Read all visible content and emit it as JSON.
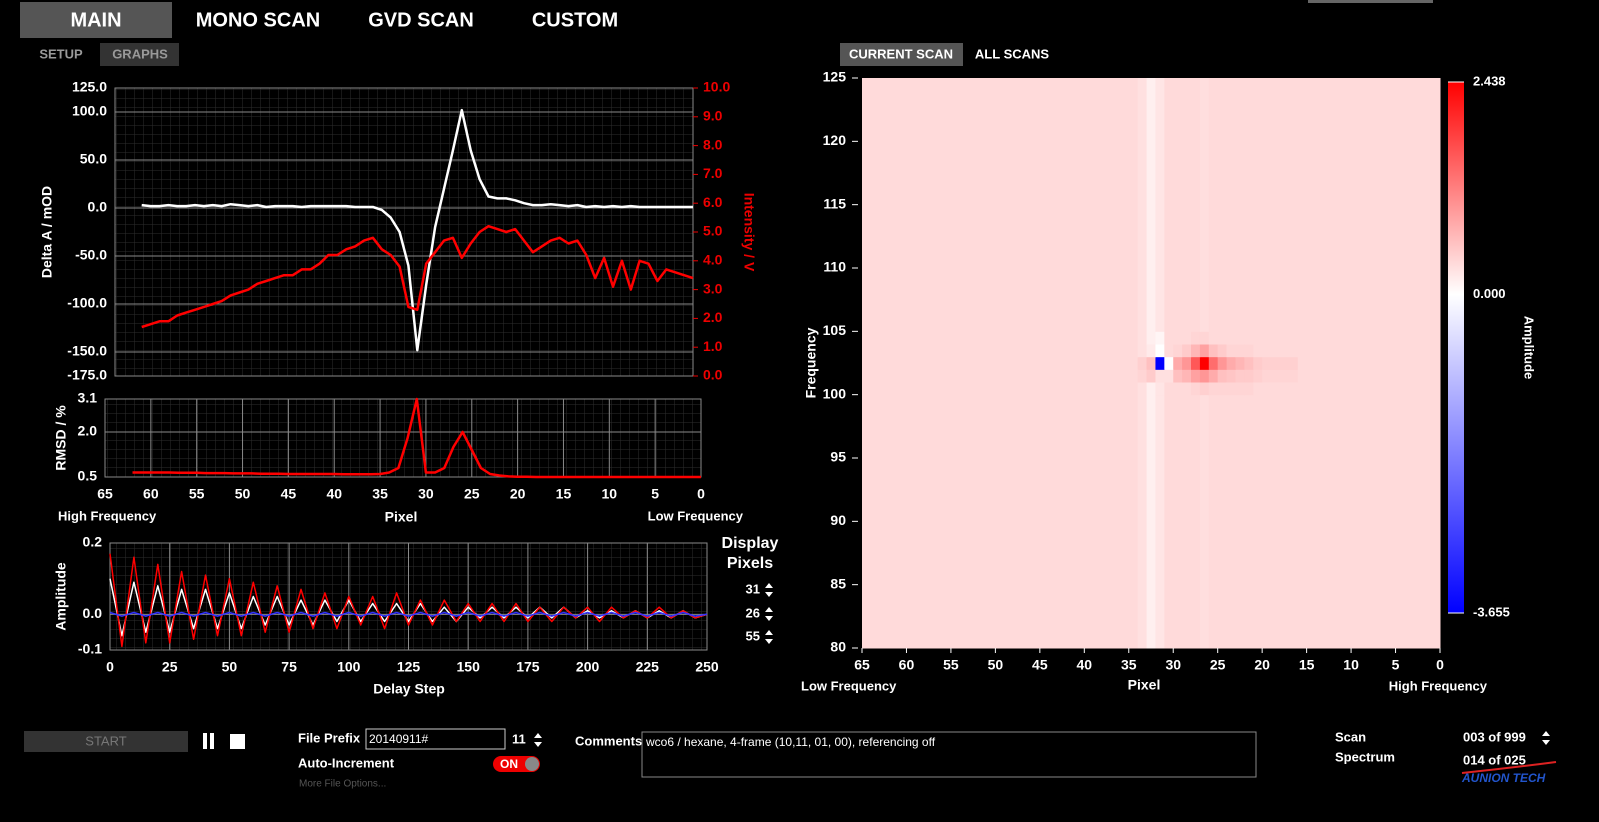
{
  "ui": {
    "tabs": [
      "MAIN",
      "MONO SCAN",
      "GVD SCAN",
      "CUSTOM"
    ],
    "subtabs": [
      "SETUP",
      "GRAPHS"
    ],
    "scan_tabs": [
      "CURRENT SCAN",
      "ALL SCANS"
    ],
    "display_pixels": {
      "label": [
        "Display",
        "Pixels"
      ],
      "values": [
        31,
        26,
        55
      ]
    },
    "controls": {
      "start": "START",
      "file_prefix_label": "File Prefix",
      "file_prefix": "20140911#",
      "file_index": 11,
      "auto_increment_label": "Auto-Increment",
      "toggle": "ON",
      "more_options": "More File Options...",
      "comments_label": "Comments",
      "comments": "wco6 / hexane, 4-frame (10,11, 01, 00), referencing off",
      "scan_label": "Scan",
      "scan": "003 of 999",
      "spectrum_label": "Spectrum",
      "spectrum": "014 of 025"
    },
    "logo": "AUNION TECH"
  },
  "chart_data": [
    {
      "type": "line",
      "ylabel": "Delta A / mOD",
      "y2label": "Intensity / V",
      "grid": true,
      "xlim": [
        65,
        0
      ],
      "ylim": [
        -175,
        125
      ],
      "yticks": [
        {
          "value": 125,
          "label": "125.0"
        },
        {
          "value": 100,
          "label": "100.0"
        },
        {
          "value": 50,
          "label": "50.0"
        },
        {
          "value": 0,
          "label": "0.0"
        },
        {
          "value": -50,
          "label": "-50.0"
        },
        {
          "value": -100,
          "label": "-100.0"
        },
        {
          "value": -150,
          "label": "-150.0"
        },
        {
          "value": -175,
          "label": "-175.0"
        }
      ],
      "y2lim": [
        0,
        10
      ],
      "y2ticks": [
        {
          "value": 10,
          "label": "10.0"
        },
        {
          "value": 9,
          "label": "9.0"
        },
        {
          "value": 8,
          "label": "8.0"
        },
        {
          "value": 7,
          "label": "7.0"
        },
        {
          "value": 6,
          "label": "6.0"
        },
        {
          "value": 5,
          "label": "5.0"
        },
        {
          "value": 4,
          "label": "4.0"
        },
        {
          "value": 3,
          "label": "3.0"
        },
        {
          "value": 2,
          "label": "2.0"
        },
        {
          "value": 1,
          "label": "1.0"
        },
        {
          "value": 0,
          "label": "0.0"
        }
      ],
      "x": [
        62,
        61,
        60,
        59,
        58,
        57,
        56,
        55,
        54,
        53,
        52,
        51,
        50,
        49,
        48,
        47,
        46,
        45,
        44,
        43,
        42,
        41,
        40,
        39,
        38,
        37,
        36,
        35,
        34,
        33,
        32,
        31,
        30,
        29,
        28,
        27,
        26,
        25,
        24,
        23,
        22,
        21,
        20,
        19,
        18,
        17,
        16,
        15,
        14,
        13,
        12,
        11,
        10,
        9,
        8,
        7,
        6,
        5,
        4,
        3,
        2,
        1,
        0
      ],
      "series": [
        {
          "color": "#ffffff",
          "values": [
            3,
            2,
            2,
            3,
            2,
            2,
            3,
            2,
            3,
            2,
            4,
            3,
            2,
            3,
            1,
            2,
            2,
            2,
            1,
            2,
            2,
            2,
            2,
            2,
            1,
            1,
            1,
            -2,
            -10,
            -25,
            -60,
            -148,
            -80,
            -20,
            20,
            60,
            102,
            60,
            30,
            12,
            10,
            10,
            8,
            5,
            3,
            3,
            4,
            3,
            2,
            3,
            1,
            2,
            1,
            2,
            1,
            2,
            1,
            1,
            1,
            1,
            1,
            1,
            1
          ]
        },
        {
          "color": "#ff0000",
          "axis": "y2",
          "values": [
            1.7,
            1.8,
            1.9,
            1.9,
            2.1,
            2.2,
            2.3,
            2.4,
            2.5,
            2.6,
            2.8,
            2.9,
            3.0,
            3.2,
            3.3,
            3.4,
            3.5,
            3.5,
            3.7,
            3.7,
            3.9,
            4.2,
            4.2,
            4.4,
            4.5,
            4.7,
            4.8,
            4.4,
            4.2,
            3.8,
            2.4,
            2.3,
            3.9,
            4.3,
            4.7,
            4.8,
            4.1,
            4.6,
            5.0,
            5.2,
            5.1,
            5.0,
            5.1,
            4.7,
            4.3,
            4.5,
            4.7,
            4.8,
            4.6,
            4.7,
            4.2,
            3.4,
            4.1,
            3.1,
            4.0,
            3.0,
            4.0,
            3.9,
            3.3,
            3.7,
            3.6,
            3.5,
            3.4
          ]
        }
      ]
    },
    {
      "type": "line",
      "ylabel": "RMSD / %",
      "xlabel": "Pixel",
      "annotations": [
        "High Frequency",
        "Low Frequency"
      ],
      "grid": true,
      "xlim": [
        65,
        0
      ],
      "xticks": [
        65,
        60,
        55,
        50,
        45,
        40,
        35,
        30,
        25,
        20,
        15,
        10,
        5,
        0
      ],
      "ylim": [
        0.5,
        3.1
      ],
      "yticks": [
        3.1,
        {
          "value": 2,
          "label": "2.0"
        },
        0.5
      ],
      "x": [
        62,
        61,
        60,
        59,
        58,
        57,
        56,
        55,
        54,
        53,
        52,
        51,
        50,
        49,
        48,
        47,
        46,
        45,
        44,
        43,
        42,
        41,
        40,
        39,
        38,
        37,
        36,
        35,
        34,
        33,
        32,
        31,
        30,
        29,
        28,
        27,
        26,
        25,
        24,
        23,
        22,
        21,
        20,
        19,
        18,
        17,
        16,
        15,
        14,
        13,
        12,
        11,
        10,
        9,
        8,
        7,
        6,
        5,
        4,
        3,
        2,
        1,
        0
      ],
      "series": [
        {
          "color": "#ff0000",
          "values": [
            0.65,
            0.65,
            0.65,
            0.65,
            0.65,
            0.64,
            0.64,
            0.64,
            0.63,
            0.63,
            0.63,
            0.62,
            0.62,
            0.62,
            0.61,
            0.61,
            0.61,
            0.6,
            0.6,
            0.6,
            0.6,
            0.6,
            0.6,
            0.59,
            0.59,
            0.59,
            0.59,
            0.6,
            0.65,
            0.8,
            1.8,
            3.1,
            0.65,
            0.65,
            0.8,
            1.5,
            2.0,
            1.4,
            0.8,
            0.6,
            0.55,
            0.52,
            0.51,
            0.51,
            0.5,
            0.5,
            0.5,
            0.5,
            0.5,
            0.5,
            0.5,
            0.5,
            0.5,
            0.5,
            0.5,
            0.5,
            0.5,
            0.5,
            0.5,
            0.5,
            0.5,
            0.5,
            0.5
          ]
        }
      ]
    },
    {
      "type": "line",
      "ylabel": "Amplitude",
      "xlabel": "Delay Step",
      "grid": true,
      "xlim": [
        0,
        250
      ],
      "xticks": [
        0,
        25,
        50,
        75,
        100,
        125,
        150,
        175,
        200,
        225,
        250
      ],
      "ylim": [
        -0.1,
        0.2
      ],
      "yticks": [
        0.2,
        {
          "value": 0,
          "label": "0.0"
        },
        -0.1
      ],
      "x": [
        0,
        5,
        10,
        15,
        20,
        25,
        30,
        35,
        40,
        45,
        50,
        55,
        60,
        65,
        70,
        75,
        80,
        85,
        90,
        95,
        100,
        105,
        110,
        115,
        120,
        125,
        130,
        135,
        140,
        145,
        150,
        155,
        160,
        165,
        170,
        175,
        180,
        185,
        190,
        195,
        200,
        205,
        210,
        215,
        220,
        225,
        230,
        235,
        240,
        245,
        250
      ],
      "series": [
        {
          "color": "#ffffff",
          "values": [
            0.1,
            -0.06,
            0.09,
            -0.05,
            0.08,
            -0.05,
            0.07,
            -0.04,
            0.07,
            -0.04,
            0.06,
            -0.04,
            0.05,
            -0.03,
            0.05,
            -0.03,
            0.04,
            -0.03,
            0.04,
            -0.02,
            0.04,
            -0.02,
            0.03,
            -0.02,
            0.03,
            -0.02,
            0.03,
            -0.02,
            0.02,
            -0.02,
            0.02,
            -0.01,
            0.02,
            -0.01,
            0.02,
            -0.01,
            0.02,
            -0.01,
            0.02,
            -0.01,
            0.01,
            -0.01,
            0.01,
            -0.01,
            0.01,
            -0.01,
            0.01,
            -0.01,
            0.01,
            -0.01,
            0.0
          ]
        },
        {
          "color": "#ff0000",
          "values": [
            0.17,
            -0.09,
            0.16,
            -0.08,
            0.14,
            -0.08,
            0.12,
            -0.07,
            0.11,
            -0.06,
            0.1,
            -0.06,
            0.09,
            -0.05,
            0.08,
            -0.05,
            0.07,
            -0.04,
            0.06,
            -0.04,
            0.05,
            -0.03,
            0.05,
            -0.04,
            0.06,
            -0.03,
            0.04,
            -0.03,
            0.04,
            -0.02,
            0.03,
            -0.02,
            0.03,
            -0.02,
            0.03,
            -0.02,
            0.02,
            -0.02,
            0.02,
            -0.01,
            0.02,
            -0.02,
            0.02,
            -0.01,
            0.01,
            -0.01,
            0.02,
            -0.01,
            0.01,
            -0.01,
            0.0
          ]
        },
        {
          "color": "#3333ff",
          "values": [
            0.005,
            -0.005,
            0.005,
            -0.005,
            0.005,
            -0.005,
            0.005,
            -0.005,
            0.005,
            -0.005,
            0.005,
            -0.005,
            0.005,
            -0.005,
            0.005,
            -0.005,
            0.005,
            -0.005,
            0.005,
            -0.005,
            0.005,
            -0.005,
            0.005,
            -0.005,
            0.005,
            -0.005,
            0.005,
            -0.005,
            0.005,
            -0.005,
            0.005,
            -0.005,
            0.005,
            -0.005,
            0.005,
            -0.005,
            0.005,
            -0.005,
            0.005,
            -0.005,
            0.005,
            -0.005,
            0.005,
            -0.005,
            0.005,
            -0.005,
            0.005,
            -0.005,
            0.005,
            -0.005,
            0.0
          ]
        }
      ]
    },
    {
      "type": "heatmap",
      "ylabel": "Frequency",
      "xlabel": "Pixel",
      "annotations": [
        "Low Frequency",
        "High Frequency"
      ],
      "colorbar_label": "Amplitude",
      "xlim": [
        65,
        0
      ],
      "xticks": [
        65,
        60,
        55,
        50,
        45,
        40,
        35,
        30,
        25,
        20,
        15,
        10,
        5,
        0
      ],
      "ylim": [
        80,
        125
      ],
      "yticks": [
        125,
        120,
        115,
        110,
        105,
        100,
        95,
        90,
        85,
        80
      ],
      "x_edges": [
        65,
        34,
        33,
        32,
        31,
        30,
        29,
        28,
        27,
        26,
        25,
        24,
        23,
        22,
        21,
        20,
        16,
        0
      ],
      "y_edges": [
        80,
        100,
        101,
        102,
        103,
        104,
        105,
        125
      ],
      "z": [
        [
          0.35,
          0.3,
          0.15,
          0.25,
          0.35,
          0.35,
          0.35,
          0.35,
          0.32,
          0.35,
          0.35,
          0.35,
          0.35,
          0.35,
          0.35,
          0.35,
          0.35
        ],
        [
          0.35,
          0.3,
          0.15,
          0.25,
          0.35,
          0.35,
          0.35,
          0.4,
          0.45,
          0.4,
          0.4,
          0.4,
          0.4,
          0.4,
          0.35,
          0.35,
          0.35
        ],
        [
          0.35,
          0.4,
          0.5,
          0.3,
          0.3,
          0.6,
          0.7,
          0.9,
          1.0,
          0.8,
          0.6,
          0.55,
          0.5,
          0.5,
          0.45,
          0.4,
          0.35
        ],
        [
          0.35,
          0.45,
          0.6,
          -3.655,
          0.0,
          0.8,
          1.0,
          1.6,
          2.438,
          1.4,
          1.0,
          0.8,
          0.7,
          0.6,
          0.5,
          0.45,
          0.35
        ],
        [
          0.35,
          0.3,
          0.2,
          0.0,
          0.35,
          0.4,
          0.5,
          0.7,
          0.9,
          0.6,
          0.5,
          0.4,
          0.4,
          0.4,
          0.35,
          0.35,
          0.35
        ],
        [
          0.35,
          0.3,
          0.15,
          0.1,
          0.35,
          0.35,
          0.35,
          0.4,
          0.4,
          0.35,
          0.35,
          0.35,
          0.35,
          0.35,
          0.35,
          0.35,
          0.35
        ],
        [
          0.35,
          0.3,
          0.15,
          0.25,
          0.35,
          0.35,
          0.35,
          0.35,
          0.32,
          0.35,
          0.35,
          0.35,
          0.35,
          0.35,
          0.35,
          0.35,
          0.35
        ]
      ],
      "zlim": [
        -3.655,
        2.438
      ],
      "zticks": [
        2.438,
        {
          "value": 0,
          "label": "0.000"
        },
        -3.655
      ],
      "colorscale": [
        "#0000ff",
        "#ffffff",
        "#ff0000"
      ]
    }
  ]
}
